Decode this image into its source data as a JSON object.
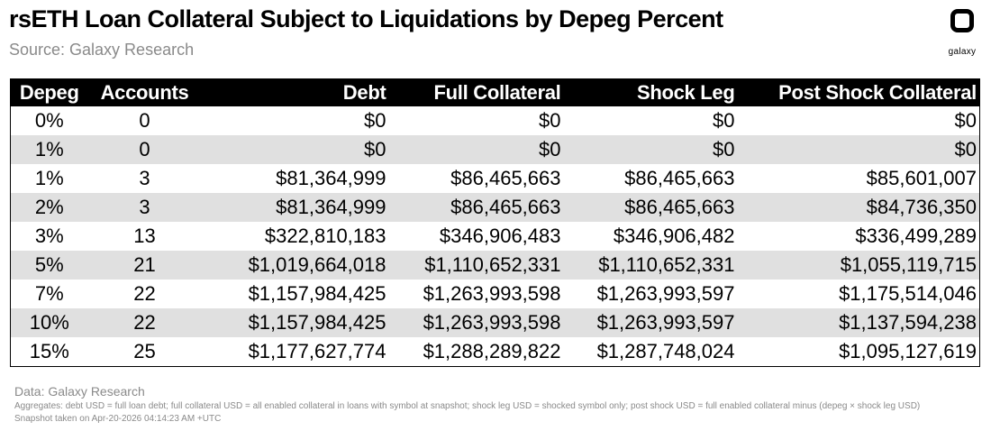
{
  "header": {
    "title": "rsETH Loan Collateral Subject to Liquidations by Depeg Percent",
    "subtitle": "Source: Galaxy Research",
    "logo_text": "galaxy"
  },
  "chart_data": {
    "type": "table",
    "columns": [
      "Depeg",
      "Accounts",
      "Debt",
      "Full Collateral",
      "Shock Leg",
      "Post Shock Collateral"
    ],
    "rows": [
      [
        "0%",
        "0",
        "$0",
        "$0",
        "$0",
        "$0"
      ],
      [
        "1%",
        "0",
        "$0",
        "$0",
        "$0",
        "$0"
      ],
      [
        "1%",
        "3",
        "$81,364,999",
        "$86,465,663",
        "$86,465,663",
        "$85,601,007"
      ],
      [
        "2%",
        "3",
        "$81,364,999",
        "$86,465,663",
        "$86,465,663",
        "$84,736,350"
      ],
      [
        "3%",
        "13",
        "$322,810,183",
        "$346,906,483",
        "$346,906,482",
        "$336,499,289"
      ],
      [
        "5%",
        "21",
        "$1,019,664,018",
        "$1,110,652,331",
        "$1,110,652,331",
        "$1,055,119,715"
      ],
      [
        "7%",
        "22",
        "$1,157,984,425",
        "$1,263,993,598",
        "$1,263,993,597",
        "$1,175,514,046"
      ],
      [
        "10%",
        "22",
        "$1,157,984,425",
        "$1,263,993,598",
        "$1,263,993,597",
        "$1,137,594,238"
      ],
      [
        "15%",
        "25",
        "$1,177,627,774",
        "$1,288,289,822",
        "$1,287,748,024",
        "$1,095,127,619"
      ]
    ]
  },
  "footer": {
    "data_source": "Data: Galaxy Research",
    "note": "Aggregates: debt USD = full loan debt; full collateral USD = all enabled collateral in loans with symbol at snapshot; shock leg USD = shocked symbol only; post shock USD = full enabled collateral minus (depeg × shock leg USD)",
    "snapshot": "Snapshot taken on Apr-20-2026 04:14:23 AM +UTC"
  },
  "colors": {
    "header_bg": "#000000",
    "header_text": "#ffffff",
    "stripe": "#e0e0e0",
    "muted_text": "#8a8a8a"
  }
}
